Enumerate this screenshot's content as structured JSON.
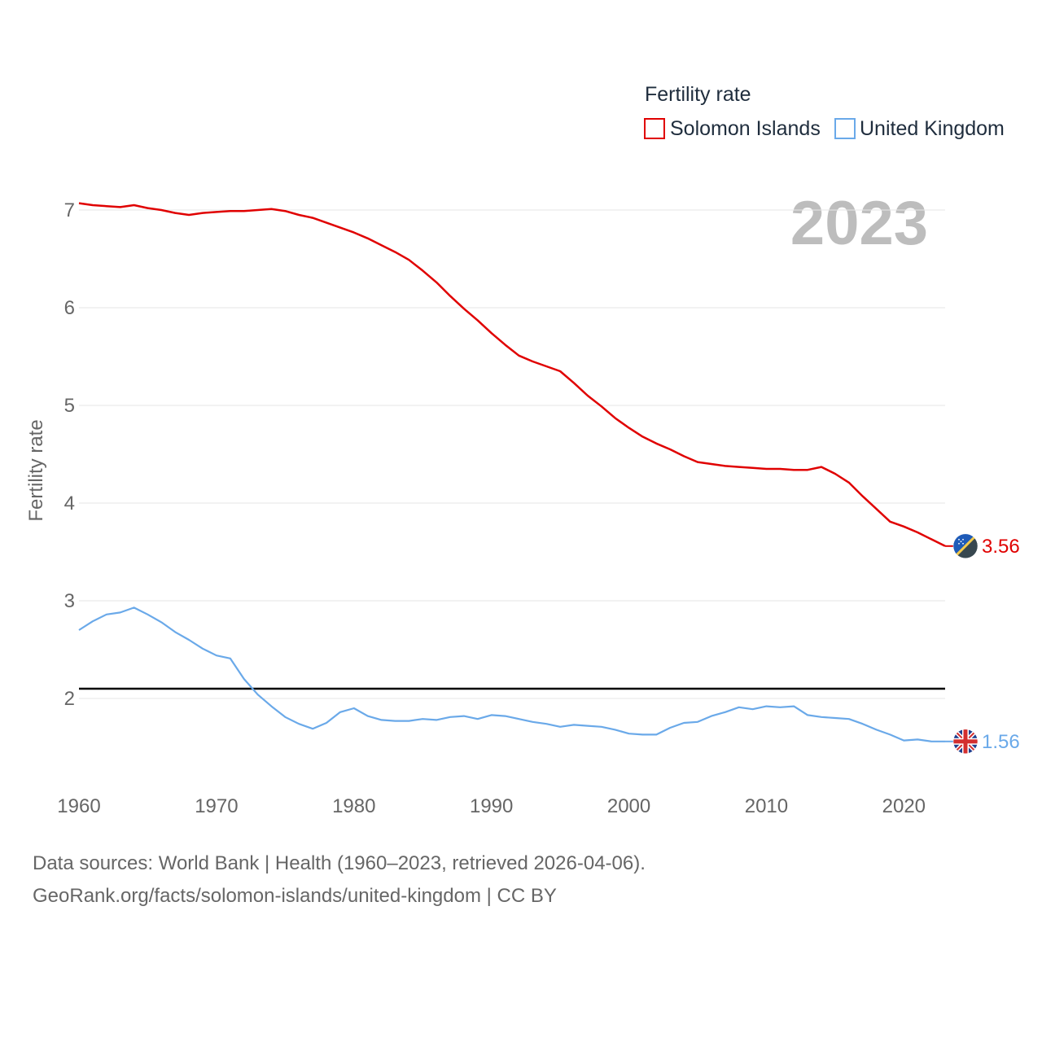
{
  "chart_data": {
    "type": "line",
    "legend_title": "Fertility rate",
    "year_label": "2023",
    "ylabel": "Fertility rate",
    "xlabel": "",
    "xlim": [
      1960,
      2023
    ],
    "ylim": [
      1.1,
      7.35
    ],
    "x_ticks": [
      1960,
      1970,
      1980,
      1990,
      2000,
      2010,
      2020
    ],
    "y_ticks": [
      2,
      3,
      4,
      5,
      6,
      7
    ],
    "reference_line": 2.1,
    "legend_position": "top-right",
    "x": [
      1960,
      1961,
      1962,
      1963,
      1964,
      1965,
      1966,
      1967,
      1968,
      1969,
      1970,
      1971,
      1972,
      1973,
      1974,
      1975,
      1976,
      1977,
      1978,
      1979,
      1980,
      1981,
      1982,
      1983,
      1984,
      1985,
      1986,
      1987,
      1988,
      1989,
      1990,
      1991,
      1992,
      1993,
      1994,
      1995,
      1996,
      1997,
      1998,
      1999,
      2000,
      2001,
      2002,
      2003,
      2004,
      2005,
      2006,
      2007,
      2008,
      2009,
      2010,
      2011,
      2012,
      2013,
      2014,
      2015,
      2016,
      2017,
      2018,
      2019,
      2020,
      2021,
      2022,
      2023
    ],
    "series": [
      {
        "name": "Solomon Islands",
        "color": "#e00000",
        "end_label": "3.56",
        "flag_icon": "solomon-islands-flag-icon",
        "values": [
          7.07,
          7.05,
          7.04,
          7.03,
          7.05,
          7.02,
          7.0,
          6.97,
          6.95,
          6.97,
          6.98,
          6.99,
          6.99,
          7.0,
          7.01,
          6.99,
          6.95,
          6.92,
          6.87,
          6.82,
          6.77,
          6.71,
          6.64,
          6.57,
          6.49,
          6.38,
          6.26,
          6.12,
          5.99,
          5.87,
          5.74,
          5.62,
          5.51,
          5.45,
          5.4,
          5.35,
          5.23,
          5.1,
          4.99,
          4.87,
          4.77,
          4.68,
          4.61,
          4.55,
          4.48,
          4.42,
          4.4,
          4.38,
          4.37,
          4.36,
          4.35,
          4.35,
          4.34,
          4.34,
          4.37,
          4.3,
          4.21,
          4.07,
          3.94,
          3.81,
          3.76,
          3.7,
          3.63,
          3.56
        ]
      },
      {
        "name": "United Kingdom",
        "color": "#6aa9e9",
        "end_label": "1.56",
        "flag_icon": "united-kingdom-flag-icon",
        "values": [
          2.7,
          2.79,
          2.86,
          2.88,
          2.93,
          2.86,
          2.78,
          2.68,
          2.6,
          2.51,
          2.44,
          2.41,
          2.2,
          2.04,
          1.92,
          1.81,
          1.74,
          1.69,
          1.75,
          1.86,
          1.9,
          1.82,
          1.78,
          1.77,
          1.77,
          1.79,
          1.78,
          1.81,
          1.82,
          1.79,
          1.83,
          1.82,
          1.79,
          1.76,
          1.74,
          1.71,
          1.73,
          1.72,
          1.71,
          1.68,
          1.64,
          1.63,
          1.63,
          1.7,
          1.75,
          1.76,
          1.82,
          1.86,
          1.91,
          1.89,
          1.92,
          1.91,
          1.92,
          1.83,
          1.81,
          1.8,
          1.79,
          1.74,
          1.68,
          1.63,
          1.57,
          1.58,
          1.56,
          1.56
        ]
      }
    ]
  },
  "footer": {
    "source_line": "Data sources: World Bank | Health (1960–2023, retrieved 2026-04-06).",
    "url_line": "GeoRank.org/facts/solomon-islands/united-kingdom | CC BY"
  }
}
